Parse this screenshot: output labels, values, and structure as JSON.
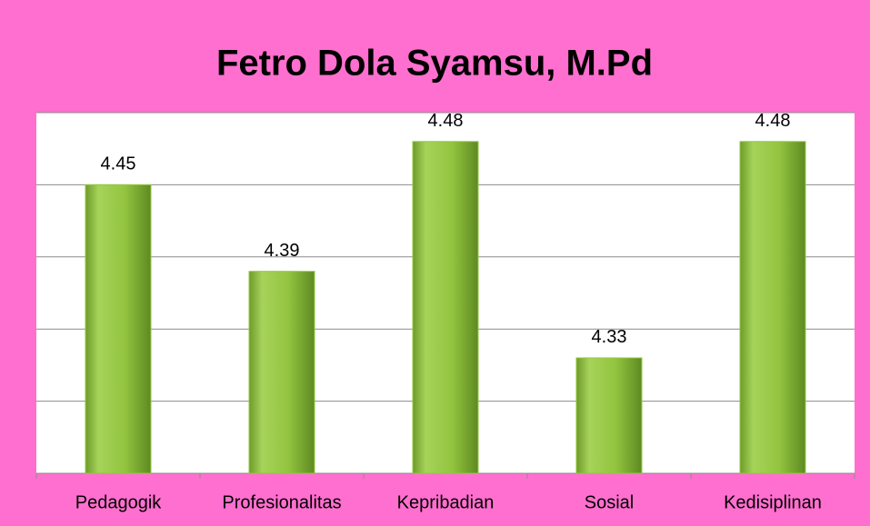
{
  "chart_data": {
    "type": "bar",
    "title": "Fetro Dola Syamsu, M.Pd",
    "categories": [
      "Pedagogik",
      "Profesionalitas",
      "Kepribadian",
      "Sosial",
      "Kedisiplinan"
    ],
    "values": [
      4.45,
      4.39,
      4.48,
      4.33,
      4.48
    ],
    "color": "#92c83e",
    "ylim": [
      4.25,
      4.5
    ],
    "yticks": [
      4.25,
      4.3,
      4.35,
      4.4,
      4.45,
      4.5
    ],
    "grid": true
  }
}
